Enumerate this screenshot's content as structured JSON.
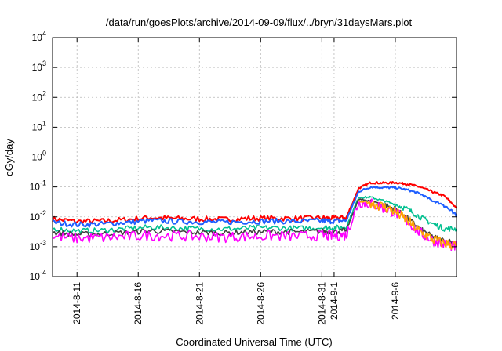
{
  "chart_data": {
    "type": "line",
    "title": "/data/run/goesPlots/archive/2014-09-09/flux/../bryn/31daysMars.plot",
    "xlabel": "Coordinated Universal Time (UTC)",
    "ylabel": "cGy/day",
    "yscale": "log",
    "ylim": [
      0.0001,
      10000
    ],
    "xlim": [
      "2014-08-09",
      "2014-09-11"
    ],
    "grid": true,
    "legend": "none",
    "x_ticks": [
      "2014-8-11",
      "2014-8-16",
      "2014-8-21",
      "2014-8-26",
      "2014-8-31",
      "2014-9-1",
      "2014-9-6"
    ],
    "y_ticks": [
      {
        "value": 0.0001,
        "mantissa": "10",
        "exp": "-4"
      },
      {
        "value": 0.001,
        "mantissa": "10",
        "exp": "-3"
      },
      {
        "value": 0.01,
        "mantissa": "10",
        "exp": "-2"
      },
      {
        "value": 0.1,
        "mantissa": "10",
        "exp": "-1"
      },
      {
        "value": 1,
        "mantissa": "10",
        "exp": "0"
      },
      {
        "value": 10,
        "mantissa": "10",
        "exp": "1"
      },
      {
        "value": 100,
        "mantissa": "10",
        "exp": "2"
      },
      {
        "value": 1000,
        "mantissa": "10",
        "exp": "3"
      },
      {
        "value": 10000,
        "mantissa": "10",
        "exp": "4"
      }
    ],
    "x": [
      "2014-08-09",
      "2014-08-11",
      "2014-08-13",
      "2014-08-15",
      "2014-08-17",
      "2014-08-19",
      "2014-08-21",
      "2014-08-23",
      "2014-08-25",
      "2014-08-27",
      "2014-08-29",
      "2014-08-31",
      "2014-09-01",
      "2014-09-02",
      "2014-09-03",
      "2014-09-04",
      "2014-09-05",
      "2014-09-06",
      "2014-09-07",
      "2014-09-08",
      "2014-09-09",
      "2014-09-10",
      "2014-09-11"
    ],
    "series": [
      {
        "color": "#ff0000",
        "values": [
          0.0085,
          0.007,
          0.0072,
          0.008,
          0.0095,
          0.0088,
          0.0085,
          0.0082,
          0.0088,
          0.009,
          0.0088,
          0.0092,
          0.009,
          0.0095,
          0.09,
          0.14,
          0.135,
          0.14,
          0.125,
          0.1,
          0.07,
          0.05,
          0.02
        ]
      },
      {
        "color": "#1f5fff",
        "values": [
          0.0065,
          0.0055,
          0.0057,
          0.0065,
          0.0075,
          0.007,
          0.0068,
          0.0066,
          0.007,
          0.0072,
          0.007,
          0.0074,
          0.0072,
          0.0076,
          0.07,
          0.1,
          0.095,
          0.095,
          0.08,
          0.06,
          0.035,
          0.025,
          0.01
        ]
      },
      {
        "color": "#00c090",
        "values": [
          0.004,
          0.0034,
          0.0035,
          0.004,
          0.0045,
          0.0042,
          0.004,
          0.0039,
          0.0042,
          0.0043,
          0.0041,
          0.0044,
          0.0043,
          0.0046,
          0.045,
          0.045,
          0.035,
          0.026,
          0.018,
          0.01,
          0.006,
          0.004,
          0.004
        ]
      },
      {
        "color": "#404040",
        "values": [
          0.003,
          0.0026,
          0.0027,
          0.003,
          0.0034,
          0.0032,
          0.003,
          0.0029,
          0.0031,
          0.0032,
          0.0031,
          0.0033,
          0.0032,
          0.0035,
          0.038,
          0.035,
          0.026,
          0.018,
          0.009,
          0.004,
          0.0022,
          0.0016,
          0.0014
        ]
      },
      {
        "color": "#ff00ff",
        "values": [
          0.0022,
          0.0019,
          0.002,
          0.0022,
          0.0024,
          0.0023,
          0.0022,
          0.0021,
          0.0022,
          0.0023,
          0.0022,
          0.0024,
          0.0023,
          0.0025,
          0.03,
          0.028,
          0.02,
          0.014,
          0.007,
          0.003,
          0.0017,
          0.0012,
          0.001
        ]
      },
      {
        "color": "#ffa500",
        "values": [
          null,
          null,
          null,
          null,
          null,
          null,
          null,
          null,
          null,
          null,
          null,
          null,
          null,
          null,
          0.033,
          0.03,
          0.022,
          0.015,
          0.0075,
          0.0032,
          0.0018,
          0.0013,
          0.0011
        ]
      }
    ]
  }
}
